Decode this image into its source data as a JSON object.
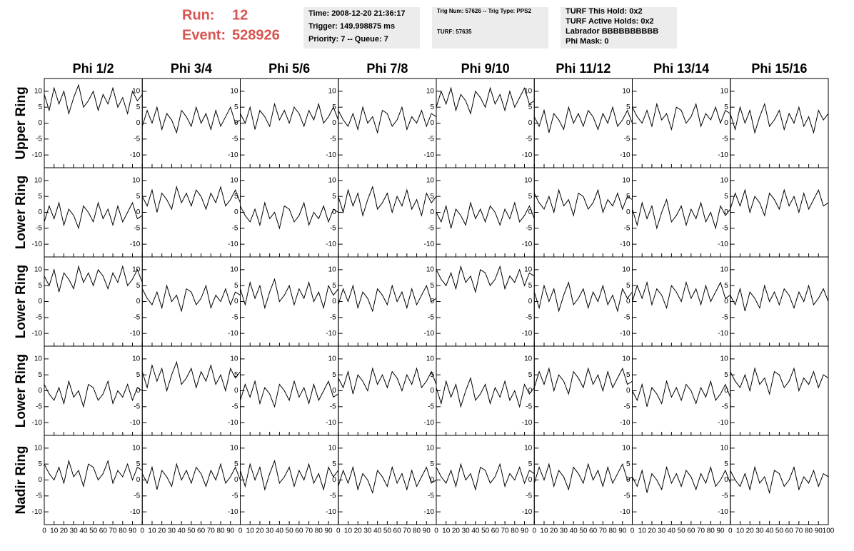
{
  "header": {
    "run_label": "Run:",
    "run": 12,
    "event_label": "Event:",
    "event": 528926,
    "info": [
      [
        "Time: 2008-12-20 21:36:17",
        "Trigger: 149.998875 ms",
        "Priority: 7 -- Queue: 7"
      ],
      [
        "Trig Num: 57626 -- Trig Type: PPS2",
        "TURF: 57635"
      ],
      [
        "TURF This Hold: 0x2",
        "TURF Active Holds: 0x2",
        "Labrador BBBBBBBBBB",
        "Phi Mask: 0"
      ]
    ]
  },
  "chart_data": {
    "type": "line",
    "columns": [
      "Phi 1/2",
      "Phi 3/4",
      "Phi 5/6",
      "Phi 7/8",
      "Phi 9/10",
      "Phi 11/12",
      "Phi 13/14",
      "Phi 15/16"
    ],
    "rows": [
      "Upper Ring",
      "Lower Ring",
      "Lower Ring",
      "Lower Ring",
      "Nadir Ring"
    ],
    "x": [
      0,
      5,
      10,
      15,
      20,
      25,
      30,
      35,
      40,
      45,
      50,
      55,
      60,
      65,
      70,
      75,
      80,
      85,
      90,
      95,
      100
    ],
    "xlim": [
      0,
      100
    ],
    "xticks": [
      0,
      10,
      20,
      30,
      40,
      50,
      60,
      70,
      80,
      90,
      100
    ],
    "ylim": [
      -14,
      14
    ],
    "yticks": [
      -10,
      -5,
      0,
      5,
      10
    ],
    "color": "#000000",
    "panels": [
      {
        "values": [
          9,
          4,
          11,
          6,
          10,
          3,
          8,
          12,
          5,
          7,
          10,
          4,
          9,
          6,
          11,
          5,
          8,
          3,
          10,
          7,
          9
        ]
      },
      {
        "values": [
          -1,
          4,
          0,
          5,
          -2,
          3,
          1,
          -3,
          4,
          2,
          -1,
          5,
          0,
          3,
          -2,
          4,
          -1,
          2,
          5,
          0,
          1
        ]
      },
      {
        "values": [
          3,
          0,
          5,
          -2,
          4,
          2,
          -1,
          6,
          1,
          4,
          0,
          5,
          3,
          -1,
          4,
          1,
          6,
          0,
          2,
          5,
          1
        ]
      },
      {
        "values": [
          4,
          1,
          -1,
          3,
          -2,
          5,
          0,
          2,
          -3,
          4,
          3,
          -1,
          1,
          5,
          -2,
          2,
          0,
          4,
          -1,
          3,
          2
        ]
      },
      {
        "values": [
          5,
          10,
          6,
          11,
          4,
          9,
          7,
          3,
          10,
          8,
          5,
          11,
          6,
          9,
          4,
          10,
          5,
          8,
          11,
          6,
          7
        ]
      },
      {
        "values": [
          2,
          -1,
          4,
          -3,
          3,
          1,
          -2,
          5,
          0,
          3,
          -1,
          4,
          2,
          -2,
          3,
          0,
          5,
          -1,
          1,
          4,
          0
        ]
      },
      {
        "values": [
          5,
          2,
          0,
          4,
          -1,
          6,
          1,
          3,
          -2,
          5,
          4,
          0,
          2,
          6,
          -1,
          3,
          1,
          5,
          0,
          4,
          3
        ]
      },
      {
        "values": [
          3,
          -2,
          5,
          0,
          4,
          -3,
          2,
          6,
          -1,
          1,
          4,
          -2,
          3,
          0,
          5,
          -1,
          2,
          -3,
          4,
          1,
          3
        ]
      },
      {
        "values": [
          -3,
          2,
          -2,
          3,
          -4,
          1,
          -1,
          -5,
          2,
          0,
          -3,
          3,
          -2,
          1,
          -4,
          2,
          -3,
          0,
          3,
          -2,
          -1
        ]
      },
      {
        "values": [
          5,
          2,
          7,
          0,
          6,
          4,
          1,
          8,
          3,
          6,
          2,
          7,
          5,
          1,
          6,
          3,
          8,
          2,
          4,
          7,
          3
        ]
      },
      {
        "values": [
          2,
          -1,
          -3,
          1,
          -4,
          3,
          -2,
          0,
          -5,
          2,
          1,
          -3,
          -1,
          3,
          -4,
          0,
          -2,
          2,
          -3,
          1,
          0
        ]
      },
      {
        "values": [
          5,
          0,
          7,
          2,
          6,
          -1,
          4,
          8,
          1,
          3,
          6,
          0,
          5,
          2,
          7,
          1,
          4,
          -1,
          6,
          3,
          5
        ]
      },
      {
        "values": [
          0,
          -3,
          2,
          -5,
          1,
          -1,
          -4,
          3,
          -2,
          1,
          -3,
          2,
          0,
          -4,
          1,
          -2,
          3,
          -3,
          -1,
          2,
          -2
        ]
      },
      {
        "values": [
          6,
          3,
          1,
          5,
          0,
          7,
          2,
          4,
          -1,
          6,
          5,
          1,
          3,
          7,
          0,
          4,
          2,
          6,
          1,
          5,
          4
        ]
      },
      {
        "values": [
          1,
          -4,
          3,
          -2,
          2,
          -5,
          0,
          4,
          -3,
          -1,
          2,
          -4,
          1,
          -2,
          3,
          -3,
          0,
          -5,
          2,
          -1,
          1
        ]
      },
      {
        "values": [
          1,
          6,
          2,
          7,
          0,
          5,
          3,
          -1,
          6,
          4,
          1,
          7,
          2,
          5,
          0,
          6,
          1,
          4,
          7,
          2,
          3
        ]
      },
      {
        "values": [
          8,
          5,
          10,
          3,
          9,
          7,
          4,
          11,
          6,
          9,
          5,
          10,
          8,
          4,
          9,
          6,
          11,
          5,
          7,
          10,
          6
        ]
      },
      {
        "values": [
          4,
          1,
          -1,
          3,
          -2,
          5,
          0,
          2,
          -3,
          4,
          3,
          -1,
          1,
          5,
          -2,
          2,
          0,
          4,
          -1,
          3,
          2
        ]
      },
      {
        "values": [
          4,
          -1,
          6,
          1,
          5,
          -2,
          3,
          7,
          0,
          2,
          5,
          -1,
          4,
          1,
          6,
          0,
          3,
          -2,
          5,
          2,
          4
        ]
      },
      {
        "values": [
          -1,
          4,
          0,
          5,
          -2,
          3,
          1,
          -3,
          4,
          2,
          -1,
          5,
          0,
          3,
          -2,
          4,
          -1,
          2,
          5,
          0,
          1
        ]
      },
      {
        "values": [
          10,
          7,
          5,
          9,
          4,
          11,
          6,
          8,
          3,
          10,
          9,
          5,
          7,
          11,
          4,
          8,
          6,
          10,
          5,
          9,
          8
        ]
      },
      {
        "values": [
          3,
          -2,
          5,
          0,
          4,
          -3,
          2,
          6,
          -1,
          1,
          4,
          -2,
          3,
          0,
          5,
          -1,
          2,
          -3,
          4,
          1,
          3
        ]
      },
      {
        "values": [
          0,
          5,
          1,
          6,
          -1,
          4,
          2,
          -2,
          5,
          3,
          0,
          6,
          1,
          4,
          -1,
          5,
          0,
          3,
          6,
          1,
          2
        ]
      },
      {
        "values": [
          2,
          -1,
          4,
          -3,
          3,
          1,
          -2,
          5,
          0,
          3,
          -1,
          4,
          2,
          -2,
          3,
          0,
          5,
          -1,
          1,
          4,
          0
        ]
      },
      {
        "values": [
          2,
          -1,
          -3,
          1,
          -4,
          3,
          -2,
          0,
          -5,
          2,
          1,
          -3,
          -1,
          3,
          -4,
          0,
          -2,
          2,
          -3,
          1,
          0
        ]
      },
      {
        "values": [
          6,
          1,
          8,
          3,
          7,
          0,
          5,
          9,
          2,
          4,
          7,
          1,
          6,
          3,
          8,
          2,
          5,
          0,
          7,
          4,
          6
        ]
      },
      {
        "values": [
          -3,
          2,
          -2,
          3,
          -4,
          1,
          -1,
          -5,
          2,
          0,
          -3,
          3,
          -2,
          1,
          -4,
          2,
          -3,
          0,
          3,
          -2,
          -1
        ]
      },
      {
        "values": [
          4,
          1,
          6,
          -1,
          5,
          3,
          0,
          7,
          2,
          5,
          1,
          6,
          4,
          0,
          5,
          2,
          7,
          1,
          3,
          6,
          2
        ]
      },
      {
        "values": [
          1,
          -4,
          3,
          -2,
          2,
          -5,
          0,
          4,
          -3,
          -1,
          2,
          -4,
          1,
          -2,
          3,
          -3,
          0,
          -5,
          2,
          -1,
          1
        ]
      },
      {
        "values": [
          1,
          6,
          2,
          7,
          0,
          5,
          3,
          -1,
          6,
          4,
          1,
          7,
          2,
          5,
          0,
          6,
          1,
          4,
          7,
          2,
          3
        ]
      },
      {
        "values": [
          0,
          -3,
          2,
          -5,
          1,
          -1,
          -4,
          3,
          -2,
          1,
          -3,
          2,
          0,
          -4,
          1,
          -2,
          3,
          -3,
          -1,
          2,
          -2
        ]
      },
      {
        "values": [
          6,
          3,
          1,
          5,
          0,
          7,
          2,
          4,
          -1,
          6,
          5,
          1,
          3,
          7,
          0,
          4,
          2,
          6,
          1,
          5,
          4
        ]
      },
      {
        "values": [
          5,
          2,
          0,
          4,
          -1,
          6,
          1,
          3,
          -2,
          5,
          4,
          0,
          2,
          6,
          -1,
          3,
          1,
          5,
          0,
          4,
          3
        ]
      },
      {
        "values": [
          2,
          -1,
          4,
          -3,
          3,
          1,
          -2,
          5,
          0,
          3,
          -1,
          4,
          2,
          -2,
          3,
          0,
          5,
          -1,
          1,
          4,
          0
        ]
      },
      {
        "values": [
          3,
          -2,
          5,
          0,
          4,
          -3,
          2,
          6,
          -1,
          1,
          4,
          -2,
          3,
          0,
          5,
          -1,
          2,
          -3,
          4,
          1,
          3
        ]
      },
      {
        "values": [
          -2,
          3,
          -1,
          4,
          -3,
          2,
          0,
          -4,
          3,
          1,
          -2,
          4,
          -1,
          2,
          -3,
          3,
          -2,
          1,
          4,
          -1,
          0
        ]
      },
      {
        "values": [
          4,
          1,
          -1,
          3,
          -2,
          5,
          0,
          2,
          -3,
          4,
          3,
          -1,
          1,
          5,
          -2,
          2,
          0,
          4,
          -1,
          3,
          2
        ]
      },
      {
        "values": [
          -1,
          4,
          0,
          5,
          -2,
          3,
          1,
          -3,
          4,
          2,
          -1,
          5,
          0,
          3,
          -2,
          4,
          -1,
          2,
          5,
          0,
          1
        ]
      },
      {
        "values": [
          1,
          -2,
          3,
          -4,
          2,
          0,
          -3,
          4,
          -1,
          2,
          -2,
          3,
          1,
          -3,
          2,
          -1,
          4,
          -2,
          0,
          3,
          -1
        ]
      },
      {
        "values": [
          3,
          0,
          -2,
          2,
          -3,
          4,
          -1,
          1,
          -4,
          3,
          2,
          -2,
          0,
          4,
          -3,
          1,
          -1,
          3,
          -2,
          2,
          1
        ]
      }
    ]
  }
}
